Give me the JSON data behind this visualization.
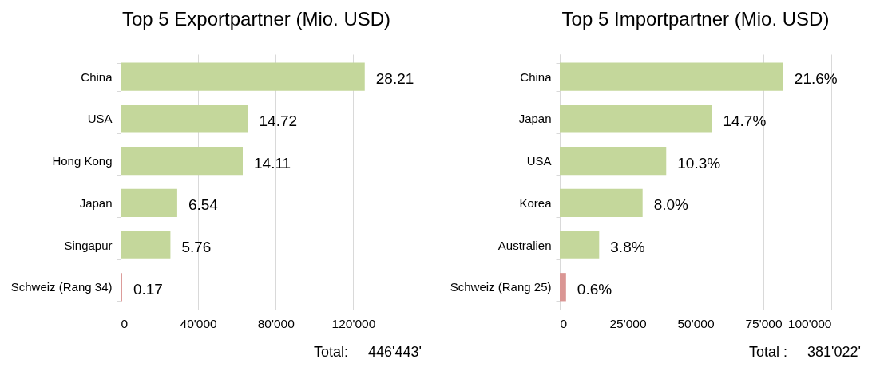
{
  "chart_data": [
    {
      "type": "bar",
      "orientation": "horizontal",
      "title": "Top 5 Exportpartner (Mio. USD)",
      "categories": [
        "China",
        "USA",
        "Hong Kong",
        "Japan",
        "Singapur",
        "Schweiz (Rang 34)"
      ],
      "values": [
        125900,
        65700,
        63000,
        29200,
        25700,
        800
      ],
      "colors": [
        "#c4d79b",
        "#c4d79b",
        "#c4d79b",
        "#c4d79b",
        "#c4d79b",
        "#da9694"
      ],
      "xlim": [
        0,
        140000
      ],
      "xticks": [
        0,
        {
          "value": 40000,
          "label": "40'000"
        },
        {
          "value": 80000,
          "label": "80'000"
        },
        {
          "value": 120000,
          "label": "120'000"
        }
      ],
      "grid": "x",
      "annotations": [
        {
          "text": "28.21",
          "x": 125900,
          "y": "China"
        },
        {
          "text": "14.72",
          "x": 65700,
          "y": "USA"
        },
        {
          "text": "14.11",
          "x": 63000,
          "y": "Hong Kong"
        },
        {
          "text": "6.54",
          "x": 29200,
          "y": "Japan"
        },
        {
          "text": "5.76",
          "x": 25700,
          "y": "Singapur"
        },
        {
          "text": "0.17",
          "x": 800,
          "y": "Schweiz (Rang 34)"
        },
        "Total:     446'443'"
      ]
    },
    {
      "type": "bar",
      "orientation": "horizontal",
      "title": "Top 5 Importpartner (Mio. USD)",
      "categories": [
        "China",
        "Japan",
        "USA",
        "Korea",
        "Australien",
        "Schweiz (Rang 25)"
      ],
      "values": [
        82300,
        56000,
        39200,
        30500,
        14500,
        2300
      ],
      "colors": [
        "#c4d79b",
        "#c4d79b",
        "#c4d79b",
        "#c4d79b",
        "#c4d79b",
        "#da9694"
      ],
      "xlim": [
        0,
        100000
      ],
      "xticks": [
        0,
        {
          "value": 25000,
          "label": "25'000"
        },
        {
          "value": 50000,
          "label": "50'000"
        },
        {
          "value": 75000,
          "label": "75'000"
        },
        {
          "value": 100000,
          "label": "100'000"
        }
      ],
      "grid": "x",
      "annotations": [
        {
          "text": "21.6%",
          "x": 82300,
          "y": "China"
        },
        {
          "text": "14.7%",
          "x": 56000,
          "y": "Japan"
        },
        {
          "text": "10.3%",
          "x": 39200,
          "y": "USA"
        },
        {
          "text": "8.0%",
          "x": 30500,
          "y": "Korea"
        },
        {
          "text": "3.8%",
          "x": 14500,
          "y": "Australien"
        },
        {
          "text": "0.6%",
          "x": 2300,
          "y": "Schweiz (Rang 25)"
        },
        "Total :     381'022'"
      ]
    }
  ]
}
